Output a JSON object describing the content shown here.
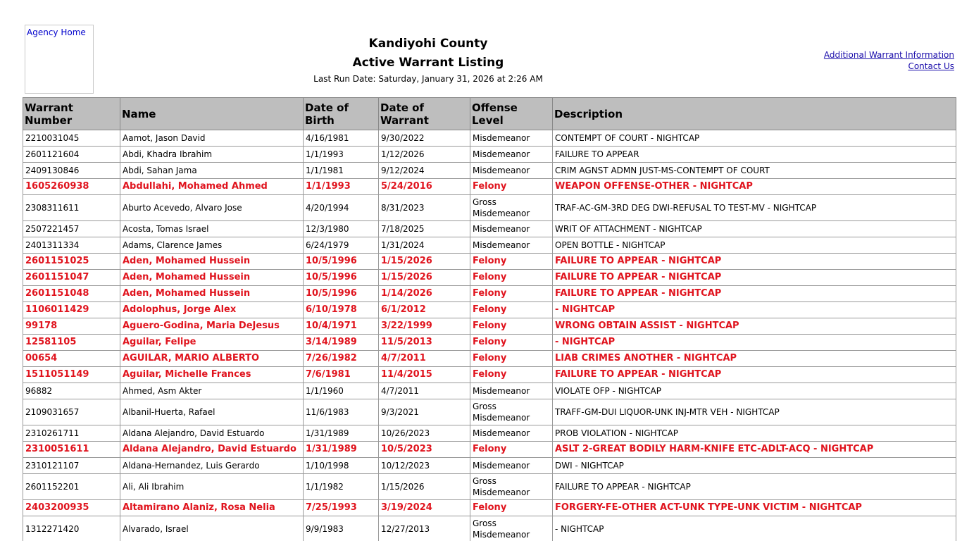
{
  "header": {
    "logo_alt": "Agency Home",
    "county": "Kandiyohi County",
    "title": "Active Warrant Listing",
    "run_date": "Last Run Date: Saturday, January 31, 2026 at 2:26 AM",
    "links": [
      "Additional Warrant Information",
      "Contact Us"
    ]
  },
  "colors": {
    "felony": "#e0141e",
    "header_bg": "#bebebe",
    "link": "#1a0dab"
  },
  "table": {
    "columns": [
      "Warrant Number",
      "Name",
      "Date of Birth",
      "Date of Warrant",
      "Offense Level",
      "Description"
    ],
    "rows": [
      [
        "2210031045",
        "Aamot, Jason David",
        "4/16/1981",
        "9/30/2022",
        "Misdemeanor",
        "CONTEMPT OF COURT - NIGHTCAP"
      ],
      [
        "2601121604",
        "Abdi, Khadra Ibrahim",
        "1/1/1993",
        "1/12/2026",
        "Misdemeanor",
        "FAILURE TO APPEAR"
      ],
      [
        "2409130846",
        "Abdi, Sahan Jama",
        "1/1/1981",
        "9/12/2024",
        "Misdemeanor",
        "CRIM AGNST ADMN JUST-MS-CONTEMPT OF COURT"
      ],
      [
        "1605260938",
        "Abdullahi, Mohamed Ahmed",
        "1/1/1993",
        "5/24/2016",
        "Felony",
        "WEAPON OFFENSE-OTHER - NIGHTCAP"
      ],
      [
        "2308311611",
        "Aburto Acevedo, Alvaro Jose",
        "4/20/1994",
        "8/31/2023",
        "Gross Misdemeanor",
        "TRAF-AC-GM-3RD DEG DWI-REFUSAL TO TEST-MV - NIGHTCAP"
      ],
      [
        "2507221457",
        "Acosta, Tomas Israel",
        "12/3/1980",
        "7/18/2025",
        "Misdemeanor",
        "WRIT OF ATTACHMENT - NIGHTCAP"
      ],
      [
        "2401311334",
        "Adams, Clarence James",
        "6/24/1979",
        "1/31/2024",
        "Misdemeanor",
        "OPEN BOTTLE - NIGHTCAP"
      ],
      [
        "2601151025",
        "Aden, Mohamed Hussein",
        "10/5/1996",
        "1/15/2026",
        "Felony",
        "FAILURE TO APPEAR - NIGHTCAP"
      ],
      [
        "2601151047",
        "Aden, Mohamed Hussein",
        "10/5/1996",
        "1/15/2026",
        "Felony",
        "FAILURE TO APPEAR - NIGHTCAP"
      ],
      [
        "2601151048",
        "Aden, Mohamed Hussein",
        "10/5/1996",
        "1/14/2026",
        "Felony",
        "FAILURE TO APPEAR - NIGHTCAP"
      ],
      [
        "1106011429",
        "Adolophus, Jorge Alex",
        "6/10/1978",
        "6/1/2012",
        "Felony",
        "- NIGHTCAP"
      ],
      [
        "99178",
        "Aguero-Godina, Maria DeJesus",
        "10/4/1971",
        "3/22/1999",
        "Felony",
        "WRONG OBTAIN ASSIST - NIGHTCAP"
      ],
      [
        "12581105",
        "Aguilar, Felipe",
        "3/14/1989",
        "11/5/2013",
        "Felony",
        "- NIGHTCAP"
      ],
      [
        "00654",
        "AGUILAR, MARIO ALBERTO",
        "7/26/1982",
        "4/7/2011",
        "Felony",
        "LIAB CRIMES ANOTHER - NIGHTCAP"
      ],
      [
        "1511051149",
        "Aguilar, Michelle Frances",
        "7/6/1981",
        "11/4/2015",
        "Felony",
        "FAILURE TO APPEAR - NIGHTCAP"
      ],
      [
        "96882",
        "Ahmed, Asm Akter",
        "1/1/1960",
        "4/7/2011",
        "Misdemeanor",
        "VIOLATE OFP - NIGHTCAP"
      ],
      [
        "2109031657",
        "Albanil-Huerta, Rafael",
        "11/6/1983",
        "9/3/2021",
        "Gross Misdemeanor",
        "TRAFF-GM-DUI LIQUOR-UNK INJ-MTR VEH - NIGHTCAP"
      ],
      [
        "2310261711",
        "Aldana Alejandro, David Estuardo",
        "1/31/1989",
        "10/26/2023",
        "Misdemeanor",
        "PROB VIOLATION - NIGHTCAP"
      ],
      [
        "2310051611",
        "Aldana Alejandro, David Estuardo",
        "1/31/1989",
        "10/5/2023",
        "Felony",
        "ASLT 2-GREAT BODILY HARM-KNIFE ETC-ADLT-ACQ - NIGHTCAP"
      ],
      [
        "2310121107",
        "Aldana-Hernandez, Luis Gerardo",
        "1/10/1998",
        "10/12/2023",
        "Misdemeanor",
        "DWI - NIGHTCAP"
      ],
      [
        "2601152201",
        "Ali, Ali Ibrahim",
        "1/1/1982",
        "1/15/2026",
        "Gross Misdemeanor",
        "FAILURE TO APPEAR - NIGHTCAP"
      ],
      [
        "2403200935",
        "Altamirano Alaniz, Rosa Nelia",
        "7/25/1993",
        "3/19/2024",
        "Felony",
        "FORGERY-FE-OTHER ACT-UNK TYPE-UNK VICTIM - NIGHTCAP"
      ],
      [
        "1312271420",
        "Alvarado, Israel",
        "9/9/1983",
        "12/27/2013",
        "Gross Misdemeanor",
        "- NIGHTCAP"
      ]
    ]
  }
}
